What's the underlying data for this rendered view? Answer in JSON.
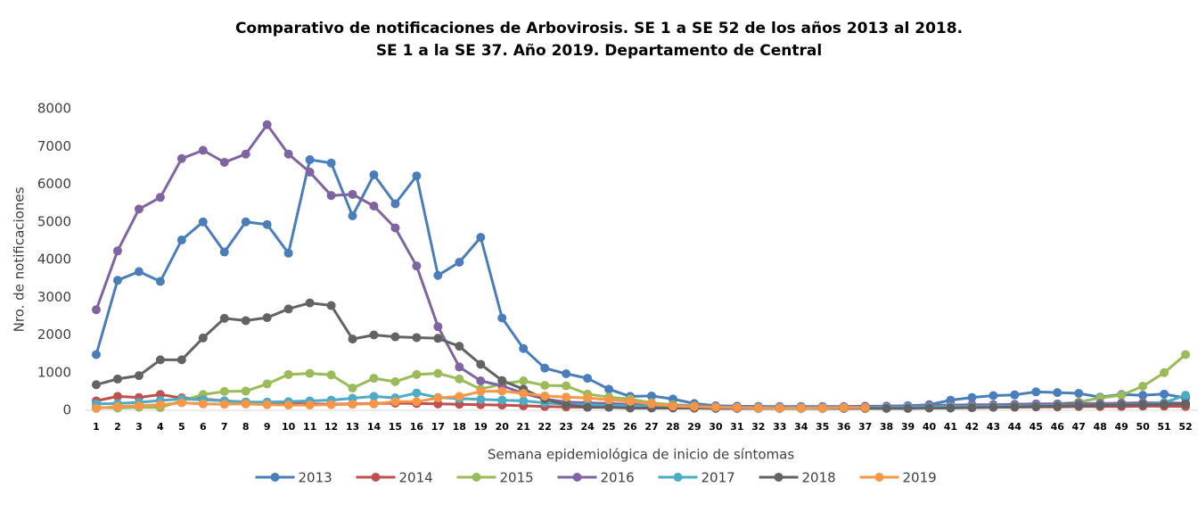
{
  "chart_data": {
    "type": "line",
    "title": "Comparativo de notificaciones de Arbovirosis. SE 1 a SE 52 de los años 2013 al 2018.",
    "subtitle": "SE 1 a la SE 37. Año 2019. Departamento de Central",
    "y_label": "Nro. de notificaciones",
    "x_label": "Semana epidemiológica de inicio de síntomas",
    "categories": [
      "1",
      "2",
      "3",
      "4",
      "5",
      "6",
      "7",
      "8",
      "9",
      "10",
      "11",
      "12",
      "13",
      "14",
      "15",
      "16",
      "17",
      "18",
      "19",
      "20",
      "21",
      "22",
      "23",
      "24",
      "25",
      "26",
      "27",
      "28",
      "29",
      "30",
      "31",
      "32",
      "33",
      "34",
      "35",
      "36",
      "37",
      "38",
      "39",
      "40",
      "41",
      "42",
      "43",
      "44",
      "45",
      "46",
      "47",
      "48",
      "49",
      "50",
      "51",
      "52"
    ],
    "ylim": [
      0,
      8000
    ],
    "yticks": [
      0,
      1000,
      2000,
      3000,
      4000,
      5000,
      6000,
      7000,
      8000
    ],
    "grid": false,
    "legend": "bottom",
    "series": [
      {
        "name": "2013",
        "color": "#4a7ebb",
        "values": [
          1480,
          3450,
          3680,
          3420,
          4520,
          5000,
          4200,
          5000,
          4930,
          4170,
          6650,
          6560,
          5160,
          6250,
          5480,
          6220,
          3580,
          3930,
          4590,
          2450,
          1640,
          1120,
          970,
          850,
          560,
          370,
          380,
          300,
          180,
          120,
          110,
          100,
          90,
          80,
          80,
          90,
          100,
          110,
          120,
          150,
          270,
          340,
          390,
          410,
          490,
          470,
          450,
          350,
          420,
          400,
          430,
          330
        ]
      },
      {
        "name": "2014",
        "color": "#c0504d",
        "values": [
          250,
          370,
          340,
          420,
          330,
          300,
          250,
          220,
          200,
          180,
          170,
          160,
          170,
          180,
          190,
          180,
          170,
          160,
          150,
          140,
          120,
          100,
          90,
          80,
          80,
          70,
          70,
          70,
          60,
          60,
          60,
          60,
          60,
          60,
          60,
          60,
          60,
          60,
          60,
          70,
          70,
          70,
          80,
          80,
          90,
          90,
          100,
          100,
          100,
          110,
          110,
          100
        ]
      },
      {
        "name": "2015",
        "color": "#9bbb59",
        "values": [
          80,
          60,
          80,
          70,
          250,
          420,
          500,
          510,
          700,
          950,
          980,
          940,
          590,
          850,
          760,
          950,
          980,
          830,
          560,
          700,
          780,
          660,
          650,
          430,
          350,
          300,
          200,
          150,
          120,
          100,
          90,
          90,
          80,
          80,
          80,
          80,
          80,
          90,
          90,
          100,
          100,
          110,
          120,
          130,
          150,
          170,
          220,
          330,
          400,
          640,
          1000,
          1480
        ]
      },
      {
        "name": "2016",
        "color": "#8064a2",
        "values": [
          2670,
          4230,
          5340,
          5650,
          6680,
          6900,
          6580,
          6800,
          7580,
          6800,
          6320,
          5700,
          5730,
          5420,
          4840,
          3830,
          2220,
          1150,
          780,
          650,
          450,
          300,
          220,
          200,
          180,
          160,
          140,
          120,
          110,
          100,
          100,
          100,
          100,
          100,
          100,
          100,
          110,
          110,
          120,
          130,
          140,
          150,
          150,
          160,
          170,
          170,
          180,
          180,
          190,
          200,
          200,
          190
        ]
      },
      {
        "name": "2017",
        "color": "#4bacc6",
        "values": [
          170,
          180,
          210,
          260,
          300,
          280,
          250,
          220,
          220,
          230,
          250,
          270,
          320,
          370,
          330,
          460,
          340,
          310,
          290,
          270,
          250,
          200,
          160,
          140,
          130,
          120,
          110,
          100,
          90,
          90,
          80,
          80,
          80,
          80,
          80,
          80,
          80,
          80,
          90,
          90,
          100,
          100,
          110,
          110,
          120,
          130,
          130,
          140,
          150,
          160,
          200,
          400
        ]
      },
      {
        "name": "2018",
        "color": "#636363",
        "values": [
          680,
          830,
          920,
          1340,
          1340,
          1920,
          2440,
          2380,
          2460,
          2690,
          2850,
          2780,
          1890,
          2000,
          1950,
          1930,
          1910,
          1700,
          1220,
          790,
          560,
          300,
          150,
          80,
          80,
          60,
          60,
          60,
          60,
          50,
          50,
          50,
          50,
          50,
          50,
          50,
          50,
          50,
          50,
          60,
          60,
          70,
          80,
          90,
          100,
          110,
          120,
          130,
          140,
          150,
          160,
          170
        ]
      },
      {
        "name": "2019",
        "color": "#f79646",
        "values": [
          50,
          100,
          120,
          150,
          200,
          170,
          160,
          170,
          150,
          140,
          140,
          150,
          160,
          170,
          230,
          230,
          330,
          370,
          500,
          510,
          450,
          380,
          350,
          330,
          280,
          240,
          170,
          110,
          100,
          80,
          70,
          60,
          60,
          60,
          60,
          70,
          70,
          null,
          null,
          null,
          null,
          null,
          null,
          null,
          null,
          null,
          null,
          null,
          null,
          null,
          null,
          null
        ]
      }
    ]
  }
}
